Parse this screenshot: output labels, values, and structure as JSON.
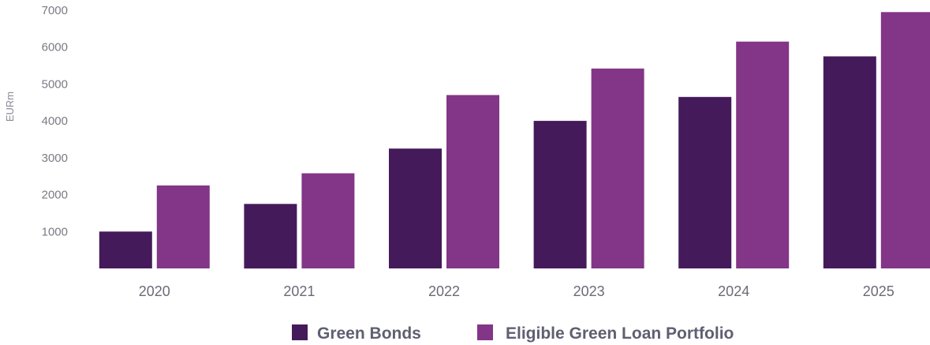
{
  "chart_data": {
    "type": "bar",
    "ylabel": "EURm",
    "ylim": [
      0,
      7000
    ],
    "y_ticks": [
      1000,
      2000,
      3000,
      4000,
      5000,
      6000,
      7000
    ],
    "grid": false,
    "legend_position": "bottom",
    "categories": [
      "2020",
      "2021",
      "2022",
      "2023",
      "2024",
      "2025"
    ],
    "series": [
      {
        "name": "Green Bonds",
        "color": "#451a5a",
        "values": [
          1000,
          1750,
          3250,
          4000,
          4650,
          5750
        ]
      },
      {
        "name": "Eligible Green Loan Portfolio",
        "color": "#833587",
        "values": [
          2250,
          2580,
          4700,
          5420,
          6150,
          6950
        ]
      }
    ]
  }
}
